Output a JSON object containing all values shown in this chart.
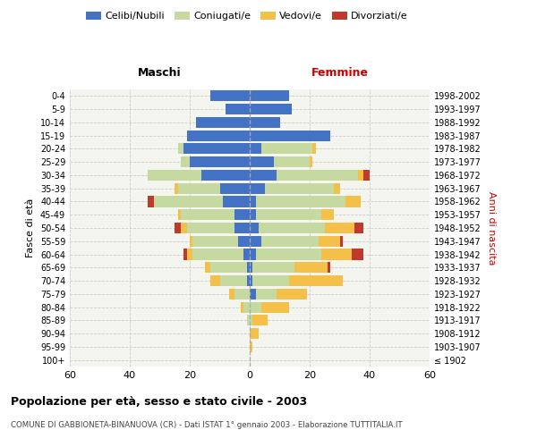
{
  "age_groups": [
    "100+",
    "95-99",
    "90-94",
    "85-89",
    "80-84",
    "75-79",
    "70-74",
    "65-69",
    "60-64",
    "55-59",
    "50-54",
    "45-49",
    "40-44",
    "35-39",
    "30-34",
    "25-29",
    "20-24",
    "15-19",
    "10-14",
    "5-9",
    "0-4"
  ],
  "birth_years": [
    "≤ 1902",
    "1903-1907",
    "1908-1912",
    "1913-1917",
    "1918-1922",
    "1923-1927",
    "1928-1932",
    "1933-1937",
    "1938-1942",
    "1943-1947",
    "1948-1952",
    "1953-1957",
    "1958-1962",
    "1963-1967",
    "1968-1972",
    "1973-1977",
    "1978-1982",
    "1983-1987",
    "1988-1992",
    "1993-1997",
    "1998-2002"
  ],
  "maschi": {
    "celibi": [
      0,
      0,
      0,
      0,
      0,
      0,
      1,
      1,
      2,
      4,
      5,
      5,
      9,
      10,
      16,
      20,
      22,
      21,
      18,
      8,
      13
    ],
    "coniugati": [
      0,
      0,
      0,
      1,
      2,
      5,
      9,
      12,
      17,
      15,
      16,
      18,
      23,
      14,
      18,
      3,
      2,
      0,
      0,
      0,
      0
    ],
    "vedovi": [
      0,
      0,
      0,
      0,
      1,
      2,
      3,
      2,
      2,
      1,
      2,
      1,
      0,
      1,
      0,
      0,
      0,
      0,
      0,
      0,
      0
    ],
    "divorziati": [
      0,
      0,
      0,
      0,
      0,
      0,
      0,
      0,
      1,
      0,
      2,
      0,
      2,
      0,
      0,
      0,
      0,
      0,
      0,
      0,
      0
    ]
  },
  "femmine": {
    "nubili": [
      0,
      0,
      0,
      0,
      0,
      2,
      1,
      1,
      2,
      4,
      3,
      2,
      2,
      5,
      9,
      8,
      4,
      27,
      10,
      14,
      13
    ],
    "coniugate": [
      0,
      0,
      0,
      1,
      4,
      7,
      12,
      14,
      22,
      19,
      22,
      22,
      30,
      23,
      27,
      12,
      17,
      0,
      0,
      0,
      0
    ],
    "vedove": [
      0,
      1,
      3,
      5,
      9,
      10,
      18,
      11,
      10,
      7,
      10,
      4,
      5,
      2,
      2,
      1,
      1,
      0,
      0,
      0,
      0
    ],
    "divorziate": [
      0,
      0,
      0,
      0,
      0,
      0,
      0,
      1,
      4,
      1,
      3,
      0,
      0,
      0,
      2,
      0,
      0,
      0,
      0,
      0,
      0
    ]
  },
  "color_celibi": "#4472C4",
  "color_coniugati": "#c5d9a0",
  "color_vedovi": "#f5c04a",
  "color_divorziati": "#c0392b",
  "xlim": 60,
  "title": "Popolazione per età, sesso e stato civile - 2003",
  "subtitle": "COMUNE DI GABBIONETA-BINANUOVA (CR) - Dati ISTAT 1° gennaio 2003 - Elaborazione TUTTITALIA.IT",
  "xlabel_left": "Maschi",
  "xlabel_right": "Femmine",
  "ylabel_left": "Fasce di età",
  "ylabel_right": "Anni di nascita",
  "bg_color": "#ffffff",
  "plot_bg_color": "#f5f5f0",
  "grid_color": "#cccccc"
}
